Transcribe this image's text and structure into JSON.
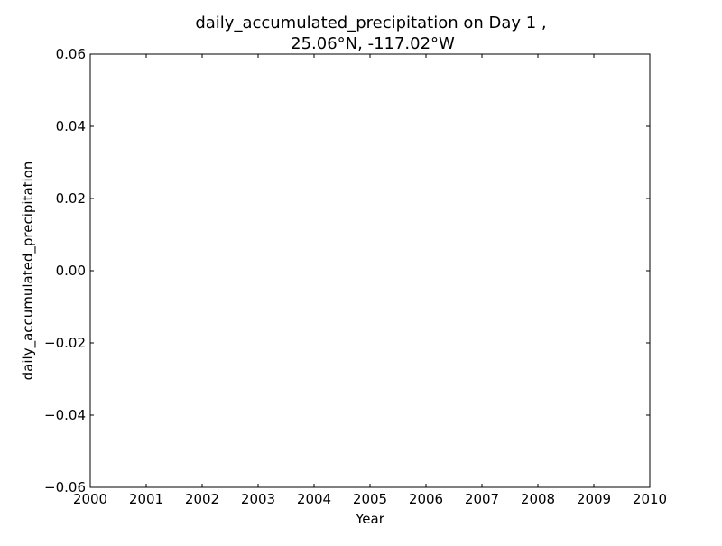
{
  "chart_data": {
    "type": "line",
    "title": "daily_accumulated_precipitation on Day 1 ,",
    "subtitle": "25.06°N, -117.02°W",
    "xlabel": "Year",
    "ylabel": "daily_accumulated_precipitation",
    "xlim": [
      2000,
      2010
    ],
    "ylim": [
      -0.06,
      0.06
    ],
    "x_ticks": [
      "2000",
      "2001",
      "2002",
      "2003",
      "2004",
      "2005",
      "2006",
      "2007",
      "2008",
      "2009",
      "2010"
    ],
    "y_ticks": [
      "0.06",
      "0.04",
      "0.02",
      "0.00",
      "−0.02",
      "−0.04",
      "−0.06"
    ],
    "series": [],
    "grid": false,
    "legend": "none"
  }
}
